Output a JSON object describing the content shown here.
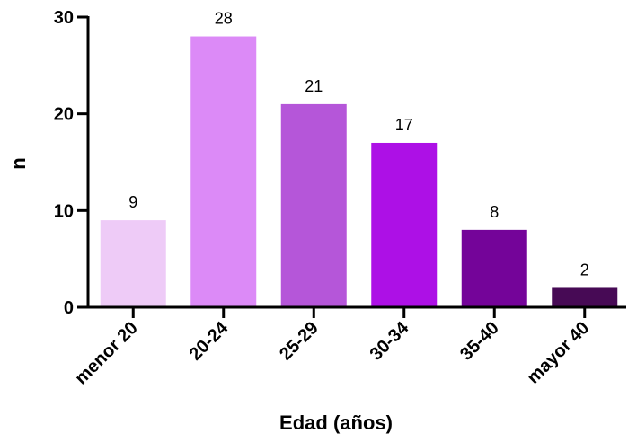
{
  "chart_data": {
    "type": "bar",
    "xlabel": "Edad (años)",
    "ylabel": "n",
    "categories": [
      "menor 20",
      "20-24",
      "25-29",
      "30-34",
      "35-40",
      "mayor 40"
    ],
    "values": [
      9,
      28,
      21,
      17,
      8,
      2
    ],
    "data_labels": [
      "9",
      "28",
      "21",
      "17",
      "8",
      "2"
    ],
    "colors": [
      "#eecbf7",
      "#dc8af7",
      "#b556d9",
      "#ad10e6",
      "#740499",
      "#470a55"
    ],
    "ylim": [
      0,
      30
    ],
    "yticks": [
      0,
      10,
      20,
      30
    ],
    "ytick_labels": [
      "0",
      "10",
      "20",
      "30"
    ],
    "grid": false,
    "legend": "none"
  }
}
